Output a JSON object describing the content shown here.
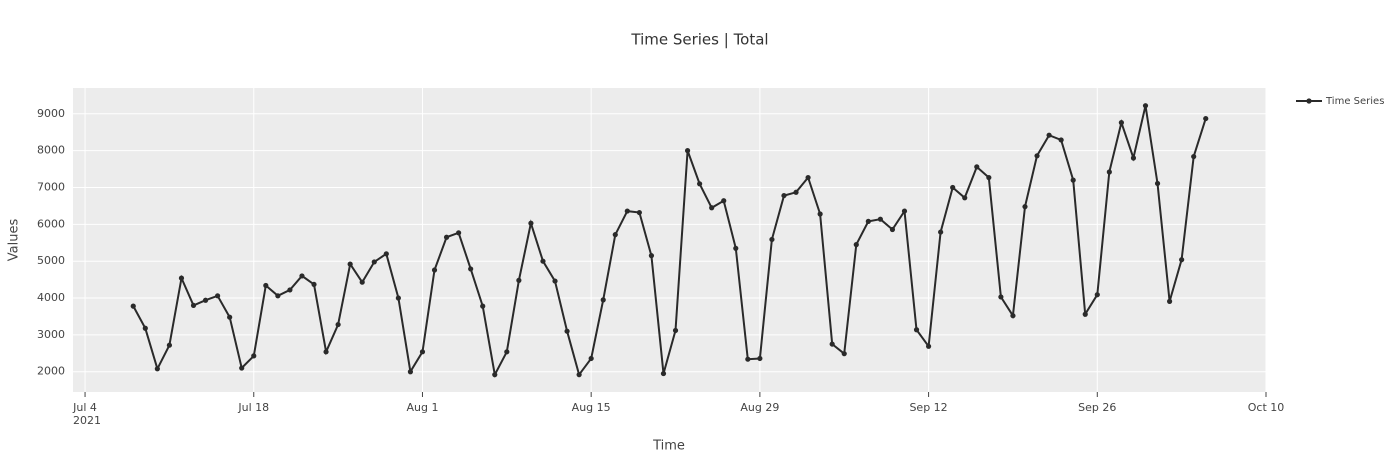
{
  "chart_data": {
    "type": "line",
    "title": "Time Series | Total",
    "x_label": "Time",
    "y_label": "Values",
    "legend": "right",
    "grid": true,
    "background": "#ececec",
    "x": [
      "2021-07-08",
      "2021-07-09",
      "2021-07-10",
      "2021-07-11",
      "2021-07-12",
      "2021-07-13",
      "2021-07-14",
      "2021-07-15",
      "2021-07-16",
      "2021-07-17",
      "2021-07-18",
      "2021-07-19",
      "2021-07-20",
      "2021-07-21",
      "2021-07-22",
      "2021-07-23",
      "2021-07-24",
      "2021-07-25",
      "2021-07-26",
      "2021-07-27",
      "2021-07-28",
      "2021-07-29",
      "2021-07-30",
      "2021-07-31",
      "2021-08-01",
      "2021-08-02",
      "2021-08-03",
      "2021-08-04",
      "2021-08-05",
      "2021-08-06",
      "2021-08-07",
      "2021-08-08",
      "2021-08-09",
      "2021-08-10",
      "2021-08-11",
      "2021-08-12",
      "2021-08-13",
      "2021-08-14",
      "2021-08-15",
      "2021-08-16",
      "2021-08-17",
      "2021-08-18",
      "2021-08-19",
      "2021-08-20",
      "2021-08-21",
      "2021-08-22",
      "2021-08-23",
      "2021-08-24",
      "2021-08-25",
      "2021-08-26",
      "2021-08-27",
      "2021-08-28",
      "2021-08-29",
      "2021-08-30",
      "2021-08-31",
      "2021-09-01",
      "2021-09-02",
      "2021-09-03",
      "2021-09-04",
      "2021-09-05",
      "2021-09-06",
      "2021-09-07",
      "2021-09-08",
      "2021-09-09",
      "2021-09-10",
      "2021-09-11",
      "2021-09-12",
      "2021-09-13",
      "2021-09-14",
      "2021-09-15",
      "2021-09-16",
      "2021-09-17",
      "2021-09-18",
      "2021-09-19",
      "2021-09-20",
      "2021-09-21",
      "2021-09-22",
      "2021-09-23",
      "2021-09-24",
      "2021-09-25",
      "2021-09-26",
      "2021-09-27",
      "2021-09-28",
      "2021-09-29",
      "2021-09-30",
      "2021-10-01",
      "2021-10-02",
      "2021-10-03",
      "2021-10-04",
      "2021-10-05"
    ],
    "series": [
      {
        "name": "Time Series",
        "color": "#2a2a2a",
        "values": [
          3780,
          3180,
          2080,
          2720,
          4540,
          3800,
          3940,
          4060,
          3480,
          2100,
          2430,
          4340,
          4060,
          4220,
          4600,
          4370,
          2540,
          3280,
          4920,
          4430,
          4980,
          5200,
          4000,
          2000,
          2540,
          4760,
          5650,
          5770,
          4790,
          3780,
          1920,
          2540,
          4480,
          6030,
          5000,
          4460,
          3100,
          1920,
          2360,
          3950,
          5720,
          6360,
          6320,
          5150,
          1950,
          3120,
          8000,
          7100,
          6450,
          6640,
          5350,
          2340,
          2360,
          5590,
          6780,
          6870,
          7270,
          6280,
          2750,
          2490,
          5450,
          6080,
          6140,
          5860,
          6360,
          3140,
          2690,
          5790,
          7000,
          6720,
          7560,
          7270,
          4030,
          3520,
          6480,
          7860,
          8420,
          8290,
          7200,
          3560,
          4090,
          7420,
          8760,
          7800,
          9220,
          7110,
          3910,
          5040,
          7840,
          8870
        ]
      }
    ],
    "xlim": [
      "2021-07-03",
      "2021-10-10"
    ],
    "xticks": [
      {
        "value": "2021-07-04",
        "label": "Jul 4\n2021"
      },
      {
        "value": "2021-07-18",
        "label": "Jul 18"
      },
      {
        "value": "2021-08-01",
        "label": "Aug 1"
      },
      {
        "value": "2021-08-15",
        "label": "Aug 15"
      },
      {
        "value": "2021-08-29",
        "label": "Aug 29"
      },
      {
        "value": "2021-09-12",
        "label": "Sep 12"
      },
      {
        "value": "2021-09-26",
        "label": "Sep 26"
      },
      {
        "value": "2021-10-10",
        "label": "Oct 10"
      }
    ],
    "ylim": [
      1450,
      9700
    ],
    "yticks": [
      2000,
      3000,
      4000,
      5000,
      6000,
      7000,
      8000,
      9000
    ]
  }
}
